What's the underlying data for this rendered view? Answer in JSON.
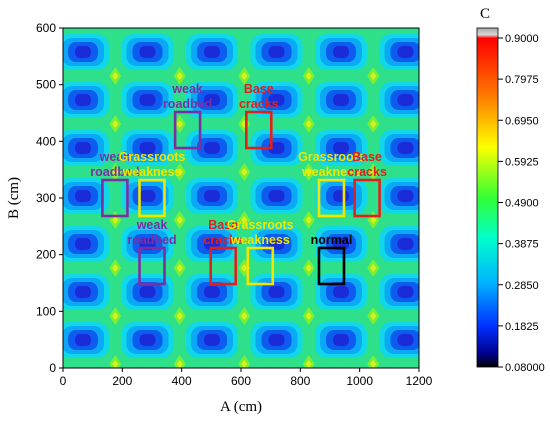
{
  "chart_data": {
    "type": "heatmap",
    "title": "",
    "xlabel": "A (cm)",
    "ylabel": "B (cm)",
    "xlim": [
      0,
      1200
    ],
    "ylim": [
      0,
      600
    ],
    "xticks": [
      "0",
      "200",
      "400",
      "600",
      "800",
      "1000",
      "1200"
    ],
    "yticks": [
      "0",
      "100",
      "200",
      "300",
      "400",
      "500",
      "600"
    ],
    "colorbar": {
      "label": "C",
      "min": 0.08,
      "max": 0.9,
      "ticks": [
        "0.9000",
        "0.7975",
        "0.6950",
        "0.5925",
        "0.4900",
        "0.3875",
        "0.2850",
        "0.1825",
        "0.08000"
      ]
    },
    "annotations": [
      {
        "label": "weak roadbed",
        "x": 420,
        "y": 420,
        "color": "#7b2fa3"
      },
      {
        "label": "Base cracks",
        "x": 660,
        "y": 420,
        "color": "#e0201c"
      },
      {
        "label": "weak roadbed",
        "x": 175,
        "y": 300,
        "color": "#7b2fa3"
      },
      {
        "label": "Grassroots weakness",
        "x": 300,
        "y": 300,
        "color": "#f2e600"
      },
      {
        "label": "Grassroots weakness",
        "x": 905,
        "y": 300,
        "color": "#f2e600"
      },
      {
        "label": "Base cracks",
        "x": 1025,
        "y": 300,
        "color": "#e0201c"
      },
      {
        "label": "weak roadbed",
        "x": 300,
        "y": 180,
        "color": "#7b2fa3"
      },
      {
        "label": "Base cracks",
        "x": 540,
        "y": 180,
        "color": "#e0201c"
      },
      {
        "label": "Grassroots weakness",
        "x": 665,
        "y": 180,
        "color": "#f2e600"
      },
      {
        "label": "normal",
        "x": 905,
        "y": 180,
        "color": "#000000"
      }
    ]
  }
}
